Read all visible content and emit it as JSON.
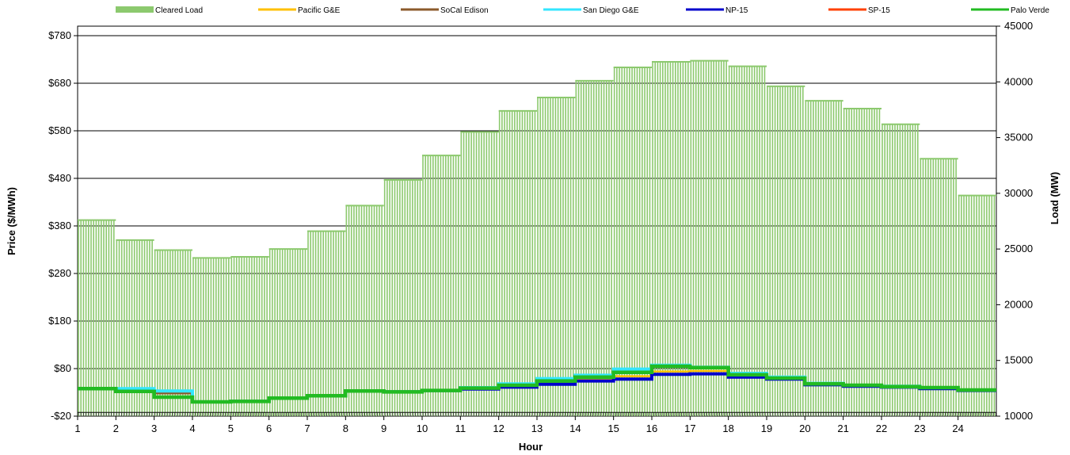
{
  "chart_data": {
    "type": "line",
    "xlabel": "Hour",
    "ylabel": "Price ($/MWh)",
    "y2label": "Load (MW)",
    "x": [
      1,
      2,
      3,
      4,
      5,
      6,
      7,
      8,
      9,
      10,
      11,
      12,
      13,
      14,
      15,
      16,
      17,
      18,
      19,
      20,
      21,
      22,
      23,
      24
    ],
    "xlim": [
      1,
      25
    ],
    "ylim": [
      -20,
      800
    ],
    "y2lim": [
      10000,
      45000
    ],
    "y_ticks": [
      "-$20",
      "$80",
      "$180",
      "$280",
      "$380",
      "$480",
      "$580",
      "$680",
      "$780"
    ],
    "y2_ticks": [
      "10000",
      "15000",
      "20000",
      "25000",
      "30000",
      "35000",
      "40000",
      "45000"
    ],
    "grid": true,
    "legend_position": "top",
    "bar_series": {
      "name": "Cleared Load",
      "color": "#8cc96e",
      "axis": "secondary",
      "values": [
        27600,
        25800,
        24900,
        24200,
        24300,
        25000,
        26600,
        28900,
        31200,
        33400,
        35500,
        37400,
        38600,
        40100,
        41300,
        41800,
        41900,
        41400,
        39600,
        38300,
        37600,
        36200,
        33100,
        29800
      ]
    },
    "series": [
      {
        "name": "Pacific G&E",
        "color": "#ffc000",
        "width": 2.5,
        "values": [
          38,
          32,
          28,
          10,
          11,
          18,
          23,
          33,
          31,
          34,
          39,
          45,
          52,
          58,
          64,
          74,
          75,
          64,
          59,
          48,
          45,
          42,
          40,
          35
        ]
      },
      {
        "name": "SoCal Edison",
        "color": "#8b5a2b",
        "width": 2.5,
        "values": [
          38,
          32,
          28,
          10,
          11,
          18,
          23,
          33,
          31,
          34,
          39,
          45,
          54,
          62,
          72,
          85,
          82,
          67,
          60,
          48,
          45,
          42,
          40,
          35
        ]
      },
      {
        "name": "San Diego G&E",
        "color": "#33e6ff",
        "width": 4,
        "values": [
          38,
          38,
          33,
          10,
          11,
          18,
          23,
          33,
          31,
          34,
          40,
          48,
          59,
          66,
          79,
          87,
          83,
          70,
          62,
          49,
          45,
          43,
          40,
          35
        ]
      },
      {
        "name": "NP-15",
        "color": "#0000cc",
        "width": 4,
        "values": [
          38,
          32,
          20,
          10,
          11,
          18,
          23,
          33,
          31,
          34,
          37,
          41,
          47,
          54,
          58,
          68,
          69,
          62,
          58,
          46,
          43,
          41,
          38,
          34
        ]
      },
      {
        "name": "SP-15",
        "color": "#ff4000",
        "width": 2.5,
        "values": [
          38,
          32,
          20,
          10,
          11,
          18,
          23,
          33,
          31,
          34,
          39,
          45,
          54,
          62,
          72,
          85,
          82,
          67,
          60,
          48,
          45,
          42,
          40,
          35
        ]
      },
      {
        "name": "Palo Verde",
        "color": "#22bb22",
        "width": 4.5,
        "values": [
          38,
          32,
          20,
          10,
          11,
          18,
          23,
          33,
          31,
          34,
          39,
          45,
          54,
          62,
          72,
          85,
          82,
          67,
          60,
          48,
          45,
          42,
          40,
          35
        ]
      }
    ]
  }
}
